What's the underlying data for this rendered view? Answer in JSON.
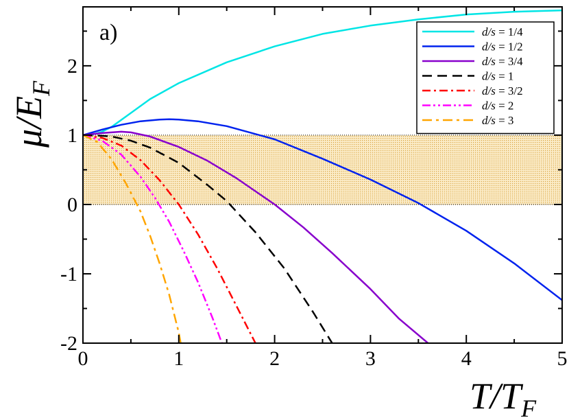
{
  "chart_data": {
    "type": "line",
    "panel_label": "a)",
    "xlabel": "T/T",
    "xlabel_sub": "F",
    "ylabel": "μ/E",
    "ylabel_sub": "F",
    "xlim": [
      0,
      5
    ],
    "ylim": [
      -2,
      2.85
    ],
    "xticks": [
      0,
      1,
      2,
      3,
      4,
      5
    ],
    "xtick_labels": [
      "0",
      "1",
      "2",
      "3",
      "4",
      "5"
    ],
    "yticks": [
      -2,
      -1,
      0,
      1,
      2
    ],
    "ytick_labels": [
      "-2",
      "-1",
      "0",
      "1",
      "2"
    ],
    "shaded_band": {
      "y_from": 0,
      "y_to": 1,
      "color": "#f0c060"
    },
    "legend_position": "top-right",
    "series": [
      {
        "name": "d/s = 1/4",
        "legend_italic": "d/s",
        "legend_rest": " = 1/4",
        "color": "#00e5e5",
        "dash": "solid",
        "x": [
          0,
          0.1,
          0.2,
          0.3,
          0.5,
          0.7,
          1.0,
          1.5,
          2.0,
          2.5,
          3.0,
          3.5,
          4.0,
          4.5,
          5.0
        ],
        "y": [
          1.0,
          1.01,
          1.05,
          1.12,
          1.32,
          1.52,
          1.75,
          2.05,
          2.28,
          2.46,
          2.58,
          2.67,
          2.74,
          2.78,
          2.8
        ]
      },
      {
        "name": "d/s = 1/2",
        "legend_italic": "d/s",
        "legend_rest": " = 1/2",
        "color": "#0022ee",
        "dash": "solid",
        "x": [
          0,
          0.2,
          0.4,
          0.6,
          0.8,
          0.9,
          1.0,
          1.2,
          1.5,
          2.0,
          2.5,
          3.0,
          3.5,
          4.0,
          4.5,
          5.0
        ],
        "y": [
          1.0,
          1.08,
          1.15,
          1.2,
          1.225,
          1.23,
          1.225,
          1.2,
          1.13,
          0.94,
          0.66,
          0.36,
          0.02,
          -0.38,
          -0.85,
          -1.38
        ]
      },
      {
        "name": "d/s = 3/4",
        "legend_italic": "d/s",
        "legend_rest": " = 3/4",
        "color": "#8800cc",
        "dash": "solid",
        "x": [
          0,
          0.2,
          0.4,
          0.5,
          0.7,
          1.0,
          1.3,
          1.6,
          2.0,
          2.3,
          2.6,
          3.0,
          3.3,
          3.6
        ],
        "y": [
          1.0,
          1.03,
          1.05,
          1.04,
          0.98,
          0.83,
          0.63,
          0.38,
          0.0,
          -0.33,
          -0.7,
          -1.22,
          -1.65,
          -2.0
        ]
      },
      {
        "name": "d/s = 1",
        "legend_italic": "d/s",
        "legend_rest": " = 1",
        "color": "#000000",
        "dash": "14,8",
        "x": [
          0,
          0.2,
          0.3,
          0.5,
          0.7,
          1.0,
          1.3,
          1.5,
          1.8,
          2.1,
          2.4,
          2.6
        ],
        "y": [
          1.0,
          0.99,
          0.98,
          0.92,
          0.82,
          0.6,
          0.28,
          0.05,
          -0.4,
          -0.92,
          -1.55,
          -2.0
        ]
      },
      {
        "name": "d/s = 3/2",
        "legend_italic": "d/s",
        "legend_rest": " = 3/2",
        "color": "#ff0000",
        "dash": "12,5,3,5",
        "x": [
          0,
          0.2,
          0.4,
          0.6,
          0.8,
          1.0,
          1.2,
          1.4,
          1.6,
          1.8
        ],
        "y": [
          1.0,
          0.96,
          0.85,
          0.64,
          0.35,
          0.0,
          -0.43,
          -0.92,
          -1.46,
          -2.0
        ]
      },
      {
        "name": "d/s = 2",
        "legend_italic": "d/s",
        "legend_rest": " = 2",
        "color": "#ff00ff",
        "dash": "12,4,3,4,3,4",
        "x": [
          0,
          0.2,
          0.4,
          0.6,
          0.75,
          0.9,
          1.05,
          1.2,
          1.35,
          1.45
        ],
        "y": [
          1.0,
          0.92,
          0.72,
          0.4,
          0.1,
          -0.25,
          -0.67,
          -1.12,
          -1.63,
          -2.0
        ]
      },
      {
        "name": "d/s = 3",
        "legend_italic": "d/s",
        "legend_rest": " = 3",
        "color": "#ffa500",
        "dash": "14,6,4,6",
        "x": [
          0,
          0.15,
          0.3,
          0.45,
          0.6,
          0.7,
          0.8,
          0.9,
          1.0,
          1.02
        ],
        "y": [
          1.0,
          0.9,
          0.65,
          0.3,
          -0.1,
          -0.45,
          -0.85,
          -1.3,
          -1.85,
          -2.0
        ]
      }
    ]
  }
}
